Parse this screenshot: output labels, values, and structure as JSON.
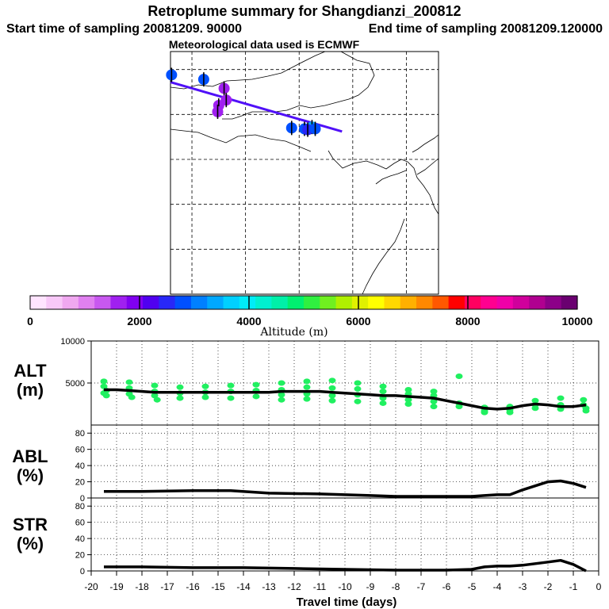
{
  "title": "Retroplume summary for Shangdianzi_200812",
  "start_time": "Start time of sampling 20081209. 90000",
  "end_time": "End time of sampling 20081209.120000",
  "met_data": "Meteorological data used is ECMWF",
  "colorbar": {
    "label": "Altitude (m)",
    "ticks": [
      "0",
      "2000",
      "4000",
      "6000",
      "8000",
      "10000"
    ],
    "colors": [
      "#ffe4ff",
      "#f8c8f8",
      "#f0a8f0",
      "#e080f0",
      "#c858f0",
      "#a020f0",
      "#8000f0",
      "#5000f0",
      "#2828f8",
      "#0050ff",
      "#0080ff",
      "#00a8ff",
      "#00d0ff",
      "#00ecf8",
      "#00f0d0",
      "#00f0a8",
      "#00f070",
      "#30f040",
      "#70f020",
      "#b0f000",
      "#e0f000",
      "#ffff00",
      "#ffd800",
      "#ffb000",
      "#ff8800",
      "#ff5800",
      "#ff0000",
      "#ff0060",
      "#ff0090",
      "#f000a8",
      "#d0009c",
      "#b00090",
      "#8c0088",
      "#6a0070"
    ]
  },
  "chart_data": [
    {
      "type": "scatter",
      "name": "map-trajectory",
      "title": "Retroplume summary for Shangdianzi_200812",
      "x_range": [
        98,
        123
      ],
      "y_range": [
        20,
        47
      ],
      "grid_lon": [
        100,
        105,
        110,
        115,
        120
      ],
      "grid_lat": [
        25,
        30,
        35,
        40,
        45
      ],
      "path": [
        [
          98,
          43.6
        ],
        [
          114,
          38.1
        ]
      ],
      "points": [
        {
          "lon": 98.1,
          "lat": 44.4,
          "color": "#0050ff"
        },
        {
          "lon": 101.1,
          "lat": 43.9,
          "color": "#0050ff"
        },
        {
          "lon": 103.0,
          "lat": 42.9,
          "color": "#a020f0"
        },
        {
          "lon": 103.2,
          "lat": 41.6,
          "color": "#a020f0"
        },
        {
          "lon": 102.5,
          "lat": 41.0,
          "color": "#a020f0"
        },
        {
          "lon": 102.4,
          "lat": 40.3,
          "color": "#a020f0"
        },
        {
          "lon": 109.3,
          "lat": 38.5,
          "color": "#0050ff"
        },
        {
          "lon": 110.5,
          "lat": 38.4,
          "color": "#0050ff"
        },
        {
          "lon": 111.2,
          "lat": 38.6,
          "color": "#00a8ff"
        },
        {
          "lon": 110.8,
          "lat": 38.3,
          "color": "#2828f8"
        },
        {
          "lon": 111.5,
          "lat": 38.4,
          "color": "#0050ff"
        }
      ]
    },
    {
      "type": "line",
      "name": "alt",
      "ylabel": "ALT (m)",
      "ylim": [
        0,
        10000
      ],
      "yticks": [
        5000,
        10000
      ],
      "x": [
        -19.5,
        -19,
        -18.5,
        -18,
        -17.5,
        -17,
        -16.5,
        -16,
        -15.5,
        -15,
        -14.5,
        -14,
        -13.5,
        -13,
        -12.5,
        -12,
        -11.5,
        -11,
        -10.5,
        -10,
        -9.5,
        -9,
        -8.5,
        -8,
        -7.5,
        -7,
        -6.5,
        -6,
        -5.5,
        -5,
        -4.5,
        -4,
        -3.5,
        -3,
        -2.5,
        -2,
        -1.5,
        -1,
        -0.5
      ],
      "values": [
        4200,
        4200,
        4100,
        4000,
        3900,
        3900,
        3900,
        3900,
        3900,
        3900,
        3900,
        3900,
        3900,
        3900,
        4000,
        4000,
        4000,
        4000,
        3900,
        3800,
        3700,
        3600,
        3500,
        3500,
        3400,
        3300,
        3200,
        2900,
        2600,
        2300,
        2000,
        1900,
        2000,
        2300,
        2500,
        2400,
        2200,
        2200,
        2400
      ],
      "scatter": [
        [
          -19.5,
          5200
        ],
        [
          -19.5,
          4600
        ],
        [
          -19.5,
          3800
        ],
        [
          -19.4,
          4100
        ],
        [
          -19.4,
          3500
        ],
        [
          -18.5,
          5100
        ],
        [
          -18.5,
          4400
        ],
        [
          -18.5,
          3700
        ],
        [
          -18.4,
          3300
        ],
        [
          -17.5,
          4700
        ],
        [
          -17.5,
          4000
        ],
        [
          -17.5,
          3500
        ],
        [
          -17.4,
          3000
        ],
        [
          -16.5,
          4500
        ],
        [
          -16.5,
          3800
        ],
        [
          -16.5,
          3200
        ],
        [
          -15.5,
          4600
        ],
        [
          -15.5,
          3900
        ],
        [
          -15.5,
          3300
        ],
        [
          -14.5,
          4700
        ],
        [
          -14.5,
          4000
        ],
        [
          -14.5,
          3200
        ],
        [
          -13.5,
          4800
        ],
        [
          -13.5,
          4100
        ],
        [
          -13.5,
          3400
        ],
        [
          -12.5,
          5000
        ],
        [
          -12.5,
          4200
        ],
        [
          -12.5,
          3600
        ],
        [
          -12.5,
          3000
        ],
        [
          -11.5,
          5200
        ],
        [
          -11.5,
          4500
        ],
        [
          -11.5,
          3700
        ],
        [
          -11.5,
          3100
        ],
        [
          -10.5,
          5300
        ],
        [
          -10.5,
          4400
        ],
        [
          -10.5,
          3500
        ],
        [
          -10.5,
          2900
        ],
        [
          -9.5,
          5000
        ],
        [
          -9.5,
          4300
        ],
        [
          -9.5,
          3600
        ],
        [
          -9.5,
          2800
        ],
        [
          -8.5,
          4600
        ],
        [
          -8.5,
          4000
        ],
        [
          -8.5,
          3200
        ],
        [
          -8.5,
          2600
        ],
        [
          -7.5,
          4200
        ],
        [
          -7.5,
          3700
        ],
        [
          -7.5,
          3000
        ],
        [
          -7.5,
          2500
        ],
        [
          -6.5,
          4000
        ],
        [
          -6.5,
          3500
        ],
        [
          -6.5,
          2800
        ],
        [
          -6.5,
          2200
        ],
        [
          -5.5,
          5800
        ],
        [
          -5.5,
          2600
        ],
        [
          -5.5,
          2200
        ],
        [
          -4.5,
          2100
        ],
        [
          -4.5,
          1700
        ],
        [
          -4.5,
          1500
        ],
        [
          -3.5,
          2200
        ],
        [
          -3.5,
          1800
        ],
        [
          -3.5,
          1500
        ],
        [
          -2.5,
          2900
        ],
        [
          -2.5,
          2400
        ],
        [
          -2.5,
          2000
        ],
        [
          -1.5,
          3200
        ],
        [
          -1.5,
          2400
        ],
        [
          -1.5,
          1900
        ],
        [
          -0.6,
          3000
        ],
        [
          -0.6,
          2400
        ],
        [
          -0.5,
          2000
        ],
        [
          -0.5,
          1700
        ]
      ]
    },
    {
      "type": "line",
      "name": "abl",
      "ylabel": "ABL (%)",
      "ylim": [
        0,
        90
      ],
      "yticks": [
        0,
        20,
        40,
        60,
        80
      ],
      "x": [
        -19.5,
        -18,
        -16,
        -14.5,
        -13,
        -11,
        -9,
        -8,
        -7,
        -6,
        -5,
        -4.5,
        -4,
        -3.5,
        -3,
        -2.5,
        -2,
        -1.5,
        -1,
        -0.5
      ],
      "values": [
        8,
        8,
        9,
        9,
        6,
        5,
        3,
        2,
        2,
        2,
        2,
        3,
        4,
        4,
        10,
        15,
        20,
        21,
        18,
        13
      ]
    },
    {
      "type": "line",
      "name": "str",
      "ylabel": "STR (%)",
      "ylim": [
        0,
        90
      ],
      "yticks": [
        0,
        20,
        40,
        60,
        80
      ],
      "x": [
        -19.5,
        -18,
        -16,
        -14,
        -12,
        -10,
        -8,
        -6,
        -5,
        -4.5,
        -4,
        -3.5,
        -3,
        -2.5,
        -2,
        -1.5,
        -1,
        -0.5
      ],
      "values": [
        5,
        5,
        4,
        4,
        3,
        2,
        1,
        1,
        2,
        5,
        6,
        6,
        7,
        9,
        11,
        13,
        8,
        0
      ]
    }
  ],
  "x_axis": {
    "label": "Travel time (days)",
    "ticks": [
      "-20",
      "-19",
      "-18",
      "-17",
      "-16",
      "-15",
      "-14",
      "-13",
      "-12",
      "-11",
      "-10",
      "-9",
      "-8",
      "-7",
      "-6",
      "-5",
      "-4",
      "-3",
      "-2",
      "-1",
      "0"
    ]
  },
  "panels": {
    "alt": {
      "name": "ALT",
      "unit": "(m)"
    },
    "abl": {
      "name": "ABL",
      "unit": "(%)"
    },
    "str": {
      "name": "STR",
      "unit": "(%)"
    }
  }
}
